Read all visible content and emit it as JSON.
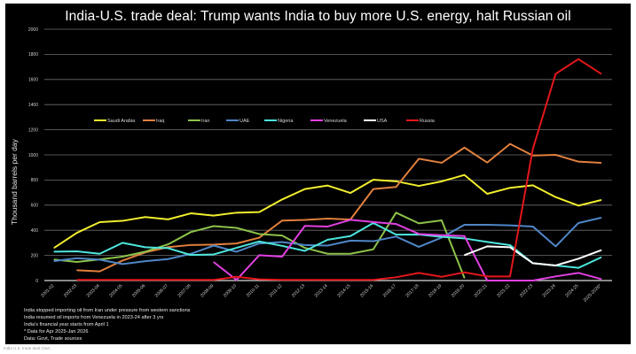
{
  "chart_data": {
    "type": "line",
    "title": "India-U.S. trade deal: Trump wants India to buy more U.S. energy, halt Russian oil",
    "xlabel": "",
    "ylabel": "Thousand barrels per day",
    "ylim": [
      0,
      2000
    ],
    "yticks": [
      0,
      200,
      400,
      600,
      800,
      1000,
      1200,
      1400,
      1600,
      1800,
      2000
    ],
    "grid": true,
    "legend_position": "center",
    "categories": [
      "2001-02",
      "2002-03",
      "2003-04",
      "2004-05",
      "2005-06",
      "2006-07",
      "2007-08",
      "2008-09",
      "2009-10",
      "2010-11",
      "2011-12",
      "2012-13",
      "2013-14",
      "2014-15",
      "2015-16",
      "2016-17",
      "2017-18",
      "2018-19",
      "2019-20",
      "2020-21",
      "2021-22",
      "2022-23",
      "2023-24",
      "2024-25",
      "2025-2026*"
    ],
    "series": [
      {
        "name": "Saudi Arabia",
        "color": "#f2ee2e",
        "values": [
          260,
          380,
          465,
          475,
          505,
          487,
          535,
          517,
          540,
          545,
          645,
          728,
          756,
          697,
          802,
          790,
          753,
          789,
          840,
          690,
          738,
          758,
          664,
          596,
          641
        ]
      },
      {
        "name": "Iraq",
        "color": "#e0803e",
        "values": [
          null,
          82,
          73,
          159,
          224,
          266,
          283,
          286,
          295,
          341,
          477,
          482,
          493,
          486,
          728,
          745,
          969,
          937,
          1058,
          939,
          1087,
          995,
          1000,
          946,
          937
        ]
      },
      {
        "name": "Iran",
        "color": "#8dc24a",
        "values": [
          167,
          148,
          168,
          190,
          230,
          288,
          386,
          433,
          419,
          370,
          358,
          260,
          213,
          213,
          248,
          540,
          455,
          479,
          20,
          null,
          null,
          null,
          null,
          null,
          null
        ]
      },
      {
        "name": "UAE",
        "color": "#4f86c6",
        "values": [
          155,
          178,
          166,
          131,
          154,
          171,
          213,
          278,
          229,
          295,
          306,
          283,
          278,
          318,
          313,
          350,
          268,
          342,
          444,
          444,
          439,
          430,
          272,
          458,
          500
        ]
      },
      {
        "name": "Nigeria",
        "color": "#4de6dc",
        "values": [
          230,
          232,
          213,
          300,
          265,
          258,
          203,
          208,
          260,
          311,
          276,
          236,
          325,
          354,
          458,
          365,
          366,
          348,
          335,
          307,
          282,
          138,
          120,
          101,
          185
        ]
      },
      {
        "name": "Venezuela",
        "color": "#e040e0",
        "values": [
          null,
          null,
          null,
          null,
          null,
          null,
          null,
          147,
          5,
          202,
          190,
          435,
          430,
          483,
          466,
          450,
          371,
          361,
          354,
          0,
          0,
          0,
          33,
          61,
          12
        ]
      },
      {
        "name": "USA",
        "color": "#ffffff",
        "values": [
          null,
          null,
          null,
          null,
          null,
          null,
          null,
          null,
          null,
          null,
          null,
          null,
          null,
          null,
          null,
          null,
          null,
          null,
          202,
          272,
          265,
          138,
          120,
          174,
          242
        ]
      },
      {
        "name": "Russia",
        "color": "#e3171b",
        "values": [
          null,
          5,
          5,
          5,
          5,
          5,
          5,
          5,
          30,
          10,
          5,
          5,
          5,
          5,
          5,
          26,
          61,
          30,
          65,
          33,
          33,
          1047,
          1645,
          1762,
          1645
        ]
      }
    ],
    "notes": [
      "India stopped importing oil from Iran under pressure from western sanctions",
      "India resumed oil imports from Venezuela in 2023-24 after 3 yrs",
      "India's financial year starts from April 1",
      "* Data for Apr 2025-Jan 2026",
      "Data: Govt, Trade sources"
    ]
  },
  "footer_text": "India U.S. trade deal chart"
}
